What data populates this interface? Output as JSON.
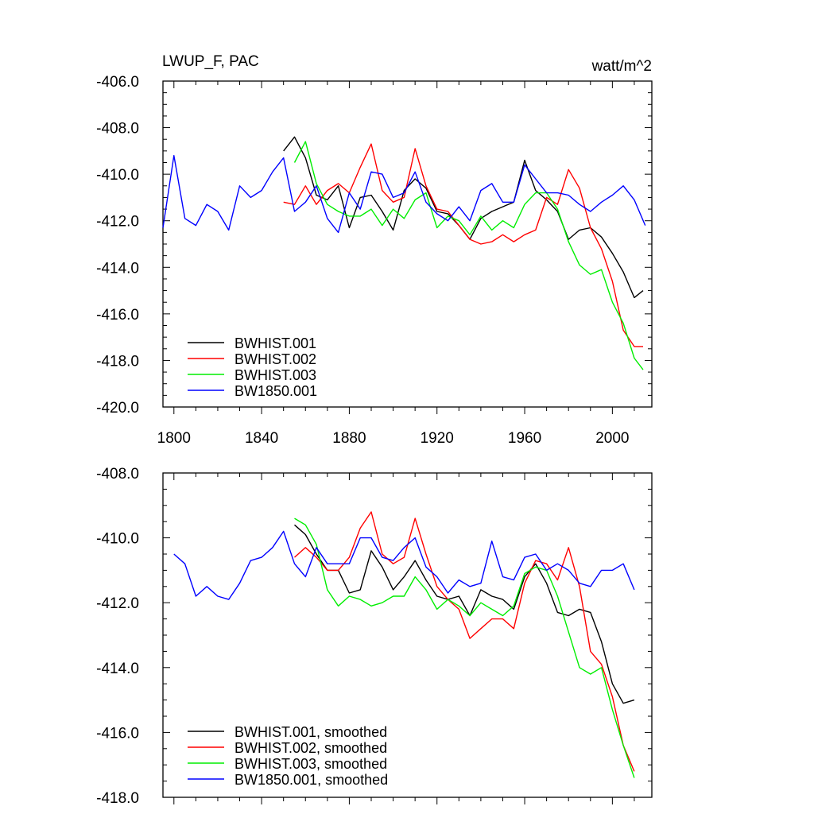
{
  "chart_data": [
    {
      "type": "line",
      "title": "LWUP_F, PAC",
      "units": "watt/m^2",
      "xlabel": "",
      "ylabel": "",
      "xlim": [
        1795,
        2018
      ],
      "ylim": [
        -420,
        -406
      ],
      "x_ticks": [
        1800,
        1840,
        1880,
        1920,
        1960,
        2000
      ],
      "y_ticks": [
        -406.0,
        -408.0,
        -410.0,
        -412.0,
        -414.0,
        -416.0,
        -418.0,
        -420.0
      ],
      "y_tick_labels": [
        "-406.0",
        "-408.0",
        "-410.0",
        "-412.0",
        "-414.0",
        "-416.0",
        "-418.0",
        "-420.0"
      ],
      "x_tick_labels": [
        "1800",
        "1840",
        "1880",
        "1920",
        "1960",
        "2000"
      ],
      "legend_position": "lower-left",
      "series": [
        {
          "name": "BWHIST.001",
          "color": "#000000",
          "x": [
            1850,
            1855,
            1860,
            1865,
            1870,
            1875,
            1880,
            1885,
            1890,
            1895,
            1900,
            1905,
            1910,
            1915,
            1920,
            1925,
            1930,
            1935,
            1940,
            1945,
            1950,
            1955,
            1960,
            1965,
            1970,
            1975,
            1980,
            1985,
            1990,
            1995,
            2000,
            2005,
            2010,
            2014
          ],
          "y": [
            -409.0,
            -408.4,
            -409.3,
            -410.9,
            -411.1,
            -410.5,
            -412.3,
            -411.0,
            -410.9,
            -411.6,
            -412.4,
            -410.7,
            -410.2,
            -410.6,
            -411.6,
            -411.7,
            -412.2,
            -412.8,
            -411.9,
            -411.6,
            -411.4,
            -411.2,
            -409.4,
            -410.7,
            -411.1,
            -411.6,
            -412.8,
            -412.4,
            -412.3,
            -412.7,
            -413.4,
            -414.2,
            -415.3,
            -415.0
          ]
        },
        {
          "name": "BWHIST.002",
          "color": "#ff0000",
          "x": [
            1850,
            1855,
            1860,
            1865,
            1870,
            1875,
            1880,
            1885,
            1890,
            1895,
            1900,
            1905,
            1910,
            1915,
            1920,
            1925,
            1930,
            1935,
            1940,
            1945,
            1950,
            1955,
            1960,
            1965,
            1970,
            1975,
            1980,
            1985,
            1990,
            1995,
            2000,
            2005,
            2010,
            2014
          ],
          "y": [
            -411.2,
            -411.3,
            -410.5,
            -411.3,
            -410.7,
            -410.4,
            -410.8,
            -409.7,
            -408.7,
            -410.7,
            -411.2,
            -411.0,
            -408.9,
            -410.5,
            -411.5,
            -411.6,
            -412.2,
            -412.8,
            -413.0,
            -412.9,
            -412.6,
            -412.9,
            -412.6,
            -412.4,
            -411.0,
            -411.3,
            -409.8,
            -410.6,
            -412.3,
            -413.2,
            -414.6,
            -416.7,
            -417.4,
            -417.4
          ]
        },
        {
          "name": "BWHIST.003",
          "color": "#00ee00",
          "x": [
            1855,
            1860,
            1865,
            1870,
            1875,
            1880,
            1885,
            1890,
            1895,
            1900,
            1905,
            1910,
            1915,
            1920,
            1925,
            1930,
            1935,
            1940,
            1945,
            1950,
            1955,
            1960,
            1965,
            1970,
            1975,
            1980,
            1985,
            1990,
            1995,
            2000,
            2005,
            2010,
            2014
          ],
          "y": [
            -409.5,
            -408.6,
            -410.4,
            -411.3,
            -411.6,
            -411.8,
            -411.8,
            -411.5,
            -412.2,
            -411.5,
            -411.9,
            -411.1,
            -410.8,
            -412.3,
            -411.8,
            -412.0,
            -412.6,
            -411.8,
            -412.4,
            -412.0,
            -412.3,
            -411.3,
            -410.8,
            -410.8,
            -411.5,
            -412.9,
            -413.9,
            -414.3,
            -414.1,
            -415.5,
            -416.4,
            -417.9,
            -418.4
          ]
        },
        {
          "name": "BW1850.001",
          "color": "#0000ff",
          "x": [
            1795,
            1800,
            1805,
            1810,
            1815,
            1820,
            1825,
            1830,
            1835,
            1840,
            1845,
            1850,
            1855,
            1860,
            1865,
            1870,
            1875,
            1880,
            1885,
            1890,
            1895,
            1900,
            1905,
            1910,
            1915,
            1920,
            1925,
            1930,
            1935,
            1940,
            1945,
            1950,
            1955,
            1960,
            1965,
            1970,
            1975,
            1980,
            1985,
            1990,
            1995,
            2000,
            2005,
            2010,
            2015
          ],
          "y": [
            -412.3,
            -409.2,
            -411.9,
            -412.2,
            -411.3,
            -411.6,
            -412.4,
            -410.5,
            -411.0,
            -410.7,
            -409.9,
            -409.3,
            -411.6,
            -411.2,
            -410.5,
            -411.9,
            -412.5,
            -410.8,
            -411.5,
            -409.9,
            -410.0,
            -411.0,
            -410.8,
            -409.9,
            -411.2,
            -411.7,
            -412.0,
            -411.4,
            -412.0,
            -410.7,
            -410.4,
            -411.2,
            -411.2,
            -409.6,
            -410.2,
            -410.8,
            -410.8,
            -410.9,
            -411.3,
            -411.6,
            -411.2,
            -410.9,
            -410.5,
            -411.1,
            -412.2
          ]
        }
      ]
    },
    {
      "type": "line",
      "title": "",
      "xlabel": "",
      "ylabel": "",
      "xlim": [
        1795,
        2018
      ],
      "ylim": [
        -418,
        -408
      ],
      "x_ticks": [
        1800,
        1840,
        1880,
        1920,
        1960,
        2000
      ],
      "y_ticks": [
        -408.0,
        -410.0,
        -412.0,
        -414.0,
        -416.0,
        -418.0
      ],
      "y_tick_labels": [
        "-408.0",
        "-410.0",
        "-412.0",
        "-414.0",
        "-416.0",
        "-418.0"
      ],
      "legend_position": "lower-left",
      "series": [
        {
          "name": "BWHIST.001, smoothed",
          "color": "#000000",
          "x": [
            1855,
            1860,
            1865,
            1870,
            1875,
            1880,
            1885,
            1890,
            1895,
            1900,
            1905,
            1910,
            1915,
            1920,
            1925,
            1930,
            1935,
            1940,
            1945,
            1950,
            1955,
            1960,
            1965,
            1970,
            1975,
            1980,
            1985,
            1990,
            1995,
            2000,
            2005,
            2010
          ],
          "y": [
            -409.6,
            -409.9,
            -410.5,
            -411.0,
            -411.0,
            -411.7,
            -411.6,
            -410.4,
            -410.9,
            -411.6,
            -411.2,
            -410.7,
            -411.3,
            -411.8,
            -411.9,
            -411.8,
            -412.4,
            -411.6,
            -411.8,
            -411.9,
            -412.2,
            -411.2,
            -410.8,
            -411.4,
            -412.3,
            -412.4,
            -412.2,
            -412.3,
            -413.2,
            -414.5,
            -415.1,
            -415.0
          ]
        },
        {
          "name": "BWHIST.002, smoothed",
          "color": "#ff0000",
          "x": [
            1855,
            1860,
            1865,
            1870,
            1875,
            1880,
            1885,
            1890,
            1895,
            1900,
            1905,
            1910,
            1915,
            1920,
            1925,
            1930,
            1935,
            1940,
            1945,
            1950,
            1955,
            1960,
            1965,
            1970,
            1975,
            1980,
            1985,
            1990,
            1995,
            2000,
            2005,
            2010
          ],
          "y": [
            -410.6,
            -410.3,
            -410.6,
            -411.0,
            -411.0,
            -410.6,
            -409.7,
            -409.2,
            -410.5,
            -410.8,
            -410.6,
            -409.4,
            -410.5,
            -411.5,
            -411.9,
            -412.2,
            -413.1,
            -412.8,
            -412.5,
            -412.5,
            -412.8,
            -411.4,
            -410.7,
            -410.8,
            -411.3,
            -410.3,
            -411.5,
            -413.5,
            -413.9,
            -414.9,
            -416.4,
            -417.2
          ]
        },
        {
          "name": "BWHIST.003, smoothed",
          "color": "#00ee00",
          "x": [
            1855,
            1860,
            1865,
            1870,
            1875,
            1880,
            1885,
            1890,
            1895,
            1900,
            1905,
            1910,
            1915,
            1920,
            1925,
            1930,
            1935,
            1940,
            1945,
            1950,
            1955,
            1960,
            1965,
            1970,
            1975,
            1980,
            1985,
            1990,
            1995,
            2000,
            2005,
            2010
          ],
          "y": [
            -409.4,
            -409.6,
            -410.2,
            -411.6,
            -412.1,
            -411.8,
            -411.9,
            -412.1,
            -412.0,
            -411.8,
            -411.8,
            -411.2,
            -411.6,
            -412.2,
            -411.9,
            -412.1,
            -412.4,
            -412.0,
            -412.2,
            -412.4,
            -412.1,
            -411.1,
            -410.9,
            -411.0,
            -411.8,
            -412.9,
            -414.0,
            -414.2,
            -414.0,
            -415.3,
            -416.4,
            -417.4
          ]
        },
        {
          "name": "BW1850.001, smoothed",
          "color": "#0000ff",
          "x": [
            1800,
            1805,
            1810,
            1815,
            1820,
            1825,
            1830,
            1835,
            1840,
            1845,
            1850,
            1855,
            1860,
            1865,
            1870,
            1875,
            1880,
            1885,
            1890,
            1895,
            1900,
            1905,
            1910,
            1915,
            1920,
            1925,
            1930,
            1935,
            1940,
            1945,
            1950,
            1955,
            1960,
            1965,
            1970,
            1975,
            1980,
            1985,
            1990,
            1995,
            2000,
            2005,
            2010
          ],
          "y": [
            -410.5,
            -410.8,
            -411.8,
            -411.5,
            -411.8,
            -411.9,
            -411.4,
            -410.7,
            -410.6,
            -410.3,
            -409.8,
            -410.8,
            -411.2,
            -410.3,
            -410.8,
            -410.8,
            -410.8,
            -410.0,
            -410.0,
            -410.6,
            -410.7,
            -410.3,
            -410.0,
            -410.9,
            -411.2,
            -411.7,
            -411.3,
            -411.5,
            -411.4,
            -410.1,
            -411.2,
            -411.3,
            -410.6,
            -410.5,
            -411.0,
            -410.8,
            -411.0,
            -411.4,
            -411.5,
            -411.0,
            -411.0,
            -410.8,
            -411.6
          ]
        }
      ]
    }
  ]
}
